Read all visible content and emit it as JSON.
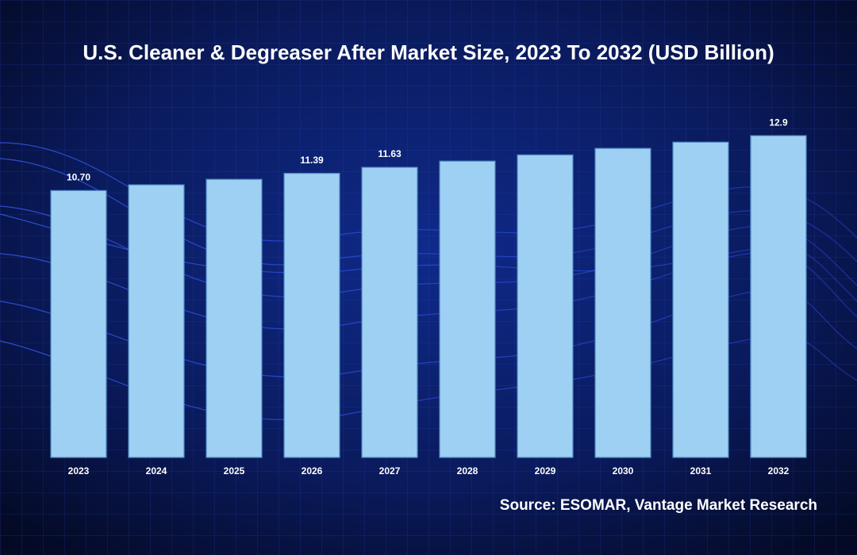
{
  "chart_data": {
    "type": "bar",
    "title": "U.S. Cleaner & Degreaser After Market Size, 2023 To 2032 (USD Billion)",
    "categories": [
      "2023",
      "2024",
      "2025",
      "2026",
      "2027",
      "2028",
      "2029",
      "2030",
      "2031",
      "2032"
    ],
    "values": [
      10.7,
      10.93,
      11.15,
      11.39,
      11.63,
      11.88,
      12.13,
      12.39,
      12.64,
      12.9
    ],
    "value_labels": [
      "10.70",
      null,
      null,
      "11.39",
      "11.63",
      null,
      null,
      null,
      null,
      "12.9"
    ],
    "color": "#9dd0f2",
    "ylim": [
      0,
      15
    ],
    "source": "Source: ESOMAR, Vantage Market Research"
  }
}
